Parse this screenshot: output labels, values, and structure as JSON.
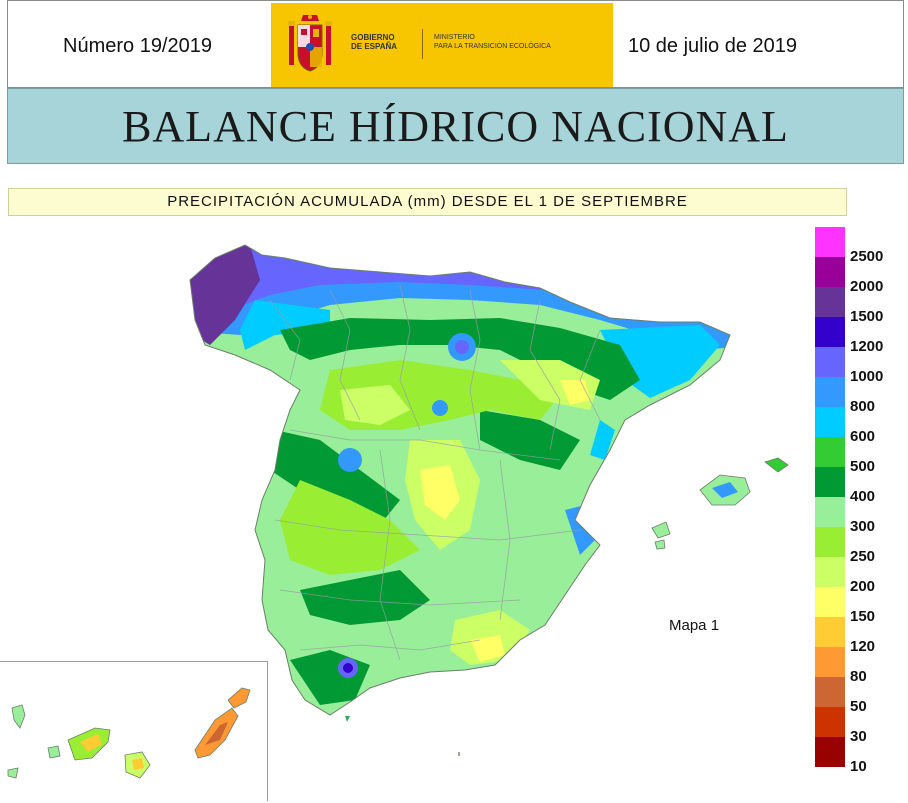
{
  "header": {
    "issue": "Número 19/2019",
    "date": "10 de julio de 2019",
    "gov_logo": {
      "left_text": "GOBIERNO\nDE ESPAÑA",
      "right_text": "MINISTERIO\nPARA LA TRANSICIÓN ECOLÓGICA",
      "background": "#f7c600"
    }
  },
  "title": "BALANCE HÍDRICO NACIONAL",
  "subtitle": "PRECIPITACIÓN ACUMULADA (mm) DESDE EL 1 DE SEPTIEMBRE",
  "map_label": "Mapa 1",
  "legend": [
    {
      "label": "2500",
      "color": "#ff33ff"
    },
    {
      "label": "2000",
      "color": "#990099"
    },
    {
      "label": "1500",
      "color": "#663399"
    },
    {
      "label": "1200",
      "color": "#3300cc"
    },
    {
      "label": "1000",
      "color": "#6666ff"
    },
    {
      "label": "800",
      "color": "#3399ff"
    },
    {
      "label": "600",
      "color": "#00ccff"
    },
    {
      "label": "500",
      "color": "#33cc33"
    },
    {
      "label": "400",
      "color": "#009933"
    },
    {
      "label": "300",
      "color": "#99ee99"
    },
    {
      "label": "250",
      "color": "#99ee33"
    },
    {
      "label": "200",
      "color": "#ccff66"
    },
    {
      "label": "150",
      "color": "#ffff66"
    },
    {
      "label": "120",
      "color": "#ffcc33"
    },
    {
      "label": "80",
      "color": "#ff9933"
    },
    {
      "label": "50",
      "color": "#cc6633"
    },
    {
      "label": "30",
      "color": "#cc3300"
    },
    {
      "label": "10",
      "color": "#990000"
    }
  ]
}
